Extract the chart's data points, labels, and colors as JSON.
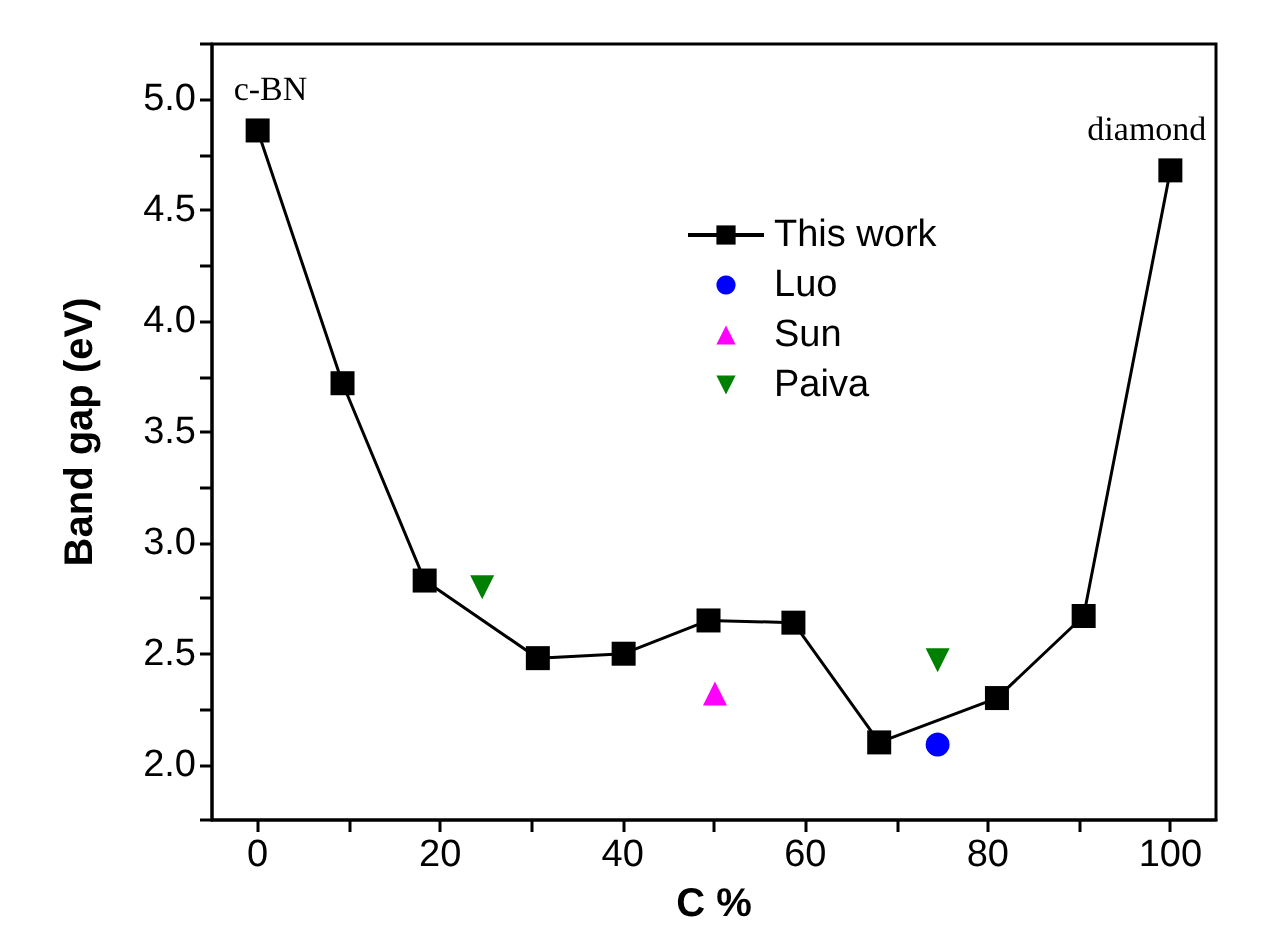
{
  "chart_data": {
    "type": "line",
    "xlabel": "C %",
    "ylabel": "Band gap (eV)",
    "xlim": [
      -5,
      105
    ],
    "xticks": [
      0,
      {
        "value": 10,
        "label": null
      },
      20,
      {
        "value": 30,
        "label": null
      },
      40,
      {
        "value": 50,
        "label": null
      },
      60,
      {
        "value": 70,
        "label": null
      },
      80,
      {
        "value": 90,
        "label": null
      },
      100
    ],
    "ylim": [
      1.75,
      5.25
    ],
    "yticks": [
      {
        "value": 1.75,
        "label": null
      },
      {
        "value": 2,
        "label": "2.0"
      },
      {
        "value": 2.25,
        "label": null
      },
      {
        "value": 2.5,
        "label": "2.5"
      },
      {
        "value": 2.75,
        "label": null
      },
      {
        "value": 3,
        "label": "3.0"
      },
      {
        "value": 3.25,
        "label": null
      },
      {
        "value": 3.5,
        "label": "3.5"
      },
      {
        "value": 3.75,
        "label": null
      },
      {
        "value": 4,
        "label": "4.0"
      },
      {
        "value": 4.25,
        "label": null
      },
      {
        "value": 4.5,
        "label": "4.5"
      },
      {
        "value": 4.75,
        "label": null
      },
      {
        "value": 5,
        "label": "5.0"
      },
      {
        "value": 5.25,
        "label": null
      }
    ],
    "legend": "top",
    "grid": false,
    "line_style": "solid",
    "annotations": [
      {
        "text": "c-BN",
        "x": 0,
        "y": 4.86
      },
      {
        "text": "diamond",
        "x": 100,
        "y": 4.68
      }
    ],
    "series": [
      {
        "name": "This work",
        "type": "line",
        "marker": "square",
        "color": "#000000",
        "x": [
          0,
          9.3,
          18.3,
          30.7,
          40.1,
          49.4,
          58.7,
          68.1,
          81,
          90.5,
          100
        ],
        "values": [
          4.86,
          3.72,
          2.83,
          2.48,
          2.5,
          2.65,
          2.64,
          2.1,
          2.3,
          2.67,
          4.68
        ]
      },
      {
        "name": "Luo",
        "type": "scatter",
        "marker": "circle",
        "color": "#0000ff",
        "x": [
          74.5
        ],
        "values": [
          2.09
        ]
      },
      {
        "name": "Sun",
        "type": "scatter",
        "marker": "triangle",
        "color": "#ff00ff",
        "x": [
          50.1
        ],
        "values": [
          2.32
        ]
      },
      {
        "name": "Paiva",
        "type": "scatter",
        "marker": "triangle-down",
        "color": "#008000",
        "x": [
          24.6,
          74.5
        ],
        "values": [
          2.8,
          2.47
        ]
      }
    ]
  }
}
